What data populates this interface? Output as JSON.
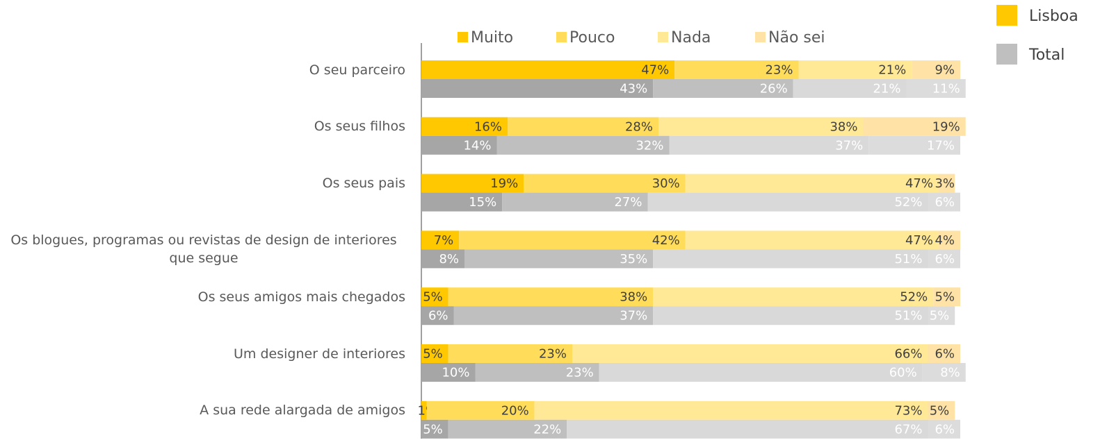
{
  "chart_data": {
    "type": "grouped_stacked_barh",
    "categories": [
      "O seu parceiro",
      "Os seus filhos",
      "Os seus pais",
      "Os blogues, programas ou revistas de design de interiores que segue",
      "Os seus amigos mais chegados",
      "Um designer de interiores",
      "A sua rede alargada de amigos"
    ],
    "groups": [
      {
        "name": "Lisboa",
        "color": "#ffc800"
      },
      {
        "name": "Total",
        "color": "#bfbfbf"
      }
    ],
    "series": [
      {
        "name": "Muito",
        "color": "#ffc800",
        "total_color": "#a6a6a6",
        "values": [
          47,
          16,
          19,
          7,
          5,
          5,
          1
        ],
        "value_labels": [
          "47%",
          "16%",
          "19%",
          "7%",
          "5%",
          "5%",
          "1%"
        ],
        "total_values": [
          43,
          14,
          15,
          8,
          6,
          10,
          5
        ],
        "total_value_labels": [
          "43%",
          "14%",
          "15%",
          "8%",
          "6%",
          "10%",
          "5%"
        ]
      },
      {
        "name": "Pouco",
        "color": "#ffdc5a",
        "total_color": "#bfbfbf",
        "values": [
          23,
          28,
          30,
          42,
          38,
          23,
          20
        ],
        "value_labels": [
          "23%",
          "28%",
          "30%",
          "42%",
          "38%",
          "23%",
          "20%"
        ],
        "total_values": [
          26,
          32,
          27,
          35,
          37,
          23,
          22
        ],
        "total_value_labels": [
          "26%",
          "32%",
          "27%",
          "35%",
          "37%",
          "23%",
          "22%"
        ]
      },
      {
        "name": "Nada",
        "color": "#ffe896",
        "total_color": "#d9d9d9",
        "values": [
          21,
          38,
          47,
          47,
          52,
          66,
          73
        ],
        "value_labels": [
          "21%",
          "38%",
          "47%",
          "47%",
          "52%",
          "66%",
          "73%"
        ],
        "total_values": [
          21,
          37,
          52,
          51,
          51,
          60,
          67
        ],
        "total_value_labels": [
          "21%",
          "37%",
          "52%",
          "51%",
          "51%",
          "60%",
          "67%"
        ]
      },
      {
        "name": "Não sei",
        "color": "#ffe3a6",
        "total_color": "#dcdcdc",
        "values": [
          9,
          19,
          3,
          4,
          5,
          6,
          5
        ],
        "value_labels": [
          "9%",
          "19%",
          "3%",
          "4%",
          "5%",
          "6%",
          "5%"
        ],
        "total_values": [
          11,
          17,
          6,
          6,
          5,
          8,
          6
        ],
        "total_value_labels": [
          "11%",
          "17%",
          "6%",
          "6%",
          "5%",
          "8%",
          "6%"
        ]
      }
    ]
  }
}
